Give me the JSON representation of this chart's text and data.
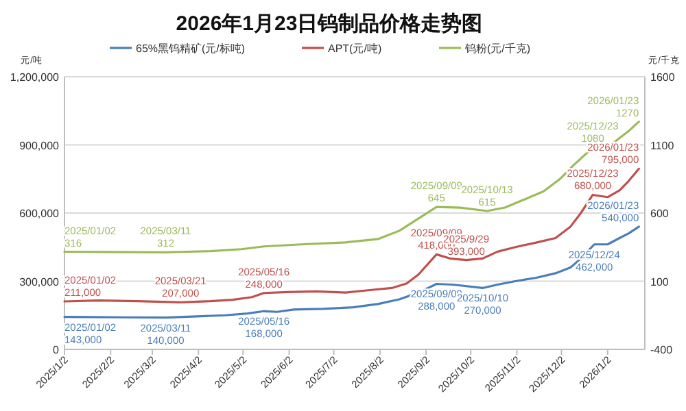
{
  "chart_data": {
    "type": "line",
    "title": "2026年1月23日钨制品价格走势图",
    "ylabel": "元/吨",
    "y2label": "元/千克",
    "legend": "top",
    "grid": "y",
    "xlim": [
      "2025-01-02",
      "2026-01-27"
    ],
    "xticks": [
      {
        "value": "2025-01-02",
        "label": "2025/1/2"
      },
      {
        "value": "2025-02-02",
        "label": "2025/2/2"
      },
      {
        "value": "2025-03-02",
        "label": "2025/3/2"
      },
      {
        "value": "2025-04-02",
        "label": "2025/4/2"
      },
      {
        "value": "2025-05-02",
        "label": "2025/5/2"
      },
      {
        "value": "2025-06-02",
        "label": "2025/6/2"
      },
      {
        "value": "2025-07-02",
        "label": "2025/7/2"
      },
      {
        "value": "2025-08-02",
        "label": "2025/8/2"
      },
      {
        "value": "2025-09-02",
        "label": "2025/9/2"
      },
      {
        "value": "2025-10-02",
        "label": "2025/10/2"
      },
      {
        "value": "2025-11-02",
        "label": "2025/11/2"
      },
      {
        "value": "2025-12-02",
        "label": "2025/12/2"
      },
      {
        "value": "2026-01-02",
        "label": "2026/1/2"
      }
    ],
    "ylim": [
      0,
      1200000
    ],
    "yticks": [
      0,
      {
        "value": 300000,
        "label": "300,000"
      },
      {
        "value": 600000,
        "label": "600,000"
      },
      {
        "value": 900000,
        "label": "900,000"
      },
      {
        "value": 1200000,
        "label": "1,200,000"
      }
    ],
    "y2lim": [
      -400,
      1600
    ],
    "y2ticks": [
      -400,
      100,
      600,
      1100,
      1600
    ],
    "series": [
      {
        "name": "65%黑钨精矿(元/标吨)",
        "color": "#4a7ebb",
        "x": [
          "2025-01-02",
          "2025-01-20",
          "2025-02-10",
          "2025-03-11",
          "2025-04-01",
          "2025-04-20",
          "2025-05-05",
          "2025-05-16",
          "2025-05-25",
          "2025-06-05",
          "2025-06-25",
          "2025-07-15",
          "2025-08-01",
          "2025-08-15",
          "2025-08-28",
          "2025-09-09",
          "2025-09-20",
          "2025-10-10",
          "2025-10-20",
          "2025-11-01",
          "2025-11-15",
          "2025-11-28",
          "2025-12-08",
          "2025-12-15",
          "2025-12-24",
          "2026-01-02",
          "2026-01-10",
          "2026-01-16",
          "2026-01-23"
        ],
        "values": [
          143000,
          142000,
          141000,
          140000,
          145000,
          150000,
          158000,
          168000,
          165000,
          175000,
          178000,
          185000,
          200000,
          220000,
          250000,
          288000,
          285000,
          270000,
          285000,
          300000,
          315000,
          335000,
          360000,
          400000,
          462000,
          462000,
          490000,
          510000,
          540000
        ]
      },
      {
        "name": "APT(元/吨)",
        "color": "#c0504d",
        "x": [
          "2025-01-02",
          "2025-01-25",
          "2025-02-20",
          "2025-03-21",
          "2025-04-10",
          "2025-04-25",
          "2025-05-08",
          "2025-05-16",
          "2025-06-01",
          "2025-06-20",
          "2025-07-10",
          "2025-07-25",
          "2025-08-10",
          "2025-08-20",
          "2025-08-28",
          "2025-09-09",
          "2025-09-18",
          "2025-09-29",
          "2025-10-10",
          "2025-10-20",
          "2025-11-01",
          "2025-11-15",
          "2025-11-28",
          "2025-12-08",
          "2025-12-15",
          "2025-12-23",
          "2026-01-02",
          "2026-01-10",
          "2026-01-16",
          "2026-01-23"
        ],
        "values": [
          211000,
          215000,
          212000,
          207000,
          212000,
          218000,
          230000,
          248000,
          252000,
          255000,
          250000,
          260000,
          270000,
          290000,
          330000,
          418000,
          400000,
          393000,
          400000,
          430000,
          450000,
          470000,
          490000,
          540000,
          600000,
          680000,
          670000,
          700000,
          740000,
          795000
        ]
      },
      {
        "name": "钨粉(元/千克)",
        "color": "#9bbb59",
        "axis": "y2",
        "x": [
          "2025-01-02",
          "2025-02-01",
          "2025-03-11",
          "2025-04-10",
          "2025-05-01",
          "2025-05-16",
          "2025-06-10",
          "2025-07-10",
          "2025-08-01",
          "2025-08-15",
          "2025-08-28",
          "2025-09-09",
          "2025-09-25",
          "2025-10-13",
          "2025-10-25",
          "2025-11-05",
          "2025-11-20",
          "2025-12-01",
          "2025-12-10",
          "2025-12-23",
          "2026-01-02",
          "2026-01-10",
          "2026-01-16",
          "2026-01-23"
        ],
        "values": [
          316,
          314,
          312,
          320,
          335,
          355,
          370,
          385,
          410,
          470,
          560,
          645,
          640,
          615,
          640,
          690,
          760,
          850,
          950,
          1080,
          1080,
          1150,
          1200,
          1270
        ]
      }
    ],
    "annotations": [
      {
        "text": "2025/01/02\n143,000",
        "x": "2025-01-02",
        "y": 143000
      },
      {
        "text": "2025/03/11\n140,000",
        "x": "2025-03-11",
        "y": 140000
      },
      {
        "text": "2025/05/16\n168,000",
        "x": "2025-05-16",
        "y": 168000
      },
      {
        "text": "2025/09/09\n288,000",
        "x": "2025-09-09",
        "y": 288000
      },
      {
        "text": "2025/10/10\n270,000",
        "x": "2025-10-10",
        "y": 270000
      },
      {
        "text": "2025/12/24\n462,000",
        "x": "2025-12-24",
        "y": 462000
      },
      {
        "text": "2026/01/23\n540,000",
        "x": "2026-01-23",
        "y": 540000
      },
      {
        "text": "2025/01/02\n211,000",
        "x": "2025-01-02",
        "y": 211000
      },
      {
        "text": "2025/03/21\n207,000",
        "x": "2025-03-21",
        "y": 207000
      },
      {
        "text": "2025/05/16\n248,000",
        "x": "2025-05-16",
        "y": 248000
      },
      {
        "text": "2025/09/09\n418,000",
        "x": "2025-09-09",
        "y": 418000
      },
      {
        "text": "2025/9/29\n393,000",
        "x": "2025-09-29",
        "y": 393000
      },
      {
        "text": "2025/12/23\n680,000",
        "x": "2025-12-23",
        "y": 680000
      },
      {
        "text": "2026/01/23\n795,000",
        "x": "2026-01-23",
        "y": 795000
      },
      {
        "text": "2025/01/02\n316",
        "x": "2025-01-02",
        "y": 429600
      },
      {
        "text": "2025/03/11\n312",
        "x": "2025-03-11",
        "y": 427200
      },
      {
        "text": "2025/09/09\n645",
        "x": "2025-09-09",
        "y": 627000
      },
      {
        "text": "2025/10/13\n615",
        "x": "2025-10-13",
        "y": 609000
      },
      {
        "text": "2025/12/23\n1080",
        "x": "2025-12-23",
        "y": 888000
      },
      {
        "text": "2026/01/23\n1270",
        "x": "2026-01-23",
        "y": 1002000
      }
    ]
  }
}
